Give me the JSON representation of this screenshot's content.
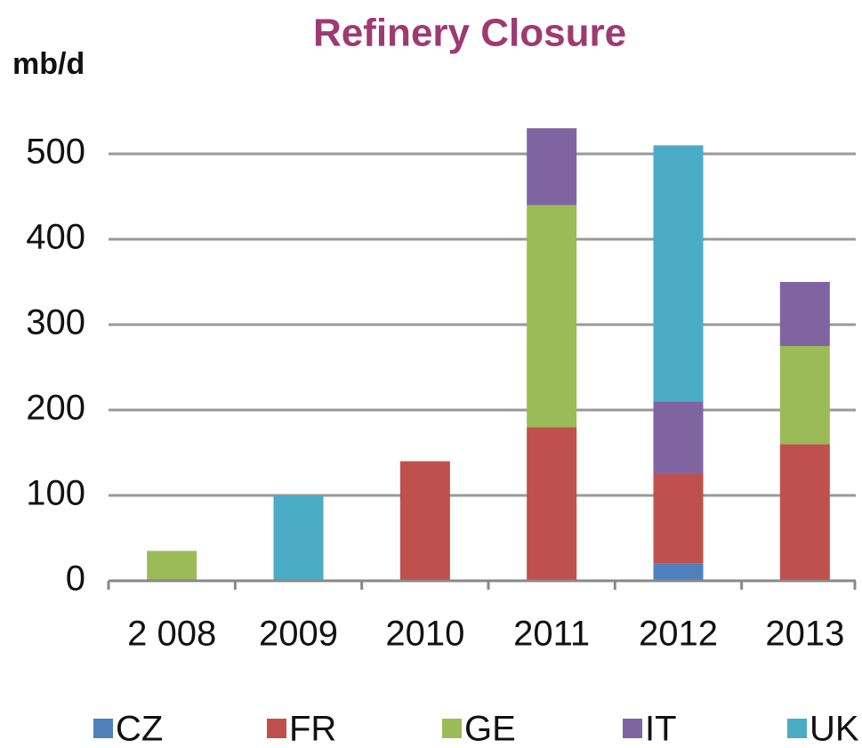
{
  "chart_data": {
    "type": "stacked_bar",
    "title": "Refinery Closure",
    "y_label": "mb/d",
    "categories": [
      "2 008",
      "2009",
      "2010",
      "2011",
      "2012",
      "2013"
    ],
    "series": [
      {
        "name": "CZ",
        "color": "#4f81bd",
        "values": [
          null,
          null,
          null,
          null,
          20,
          null
        ]
      },
      {
        "name": "FR",
        "color": "#c0504d",
        "values": [
          null,
          null,
          140,
          180,
          105,
          160
        ]
      },
      {
        "name": "GE",
        "color": "#9bbb59",
        "values": [
          35,
          null,
          null,
          260,
          null,
          115
        ]
      },
      {
        "name": "IT",
        "color": "#8064a2",
        "values": [
          null,
          null,
          null,
          90,
          85,
          75
        ]
      },
      {
        "name": "UK",
        "color": "#4bacc6",
        "values": [
          null,
          100,
          null,
          null,
          300,
          null
        ]
      }
    ],
    "ylim": [
      0,
      500
    ],
    "yticks": [
      0,
      100,
      200,
      300,
      400,
      500
    ],
    "grid": true,
    "legend": "bottom"
  }
}
